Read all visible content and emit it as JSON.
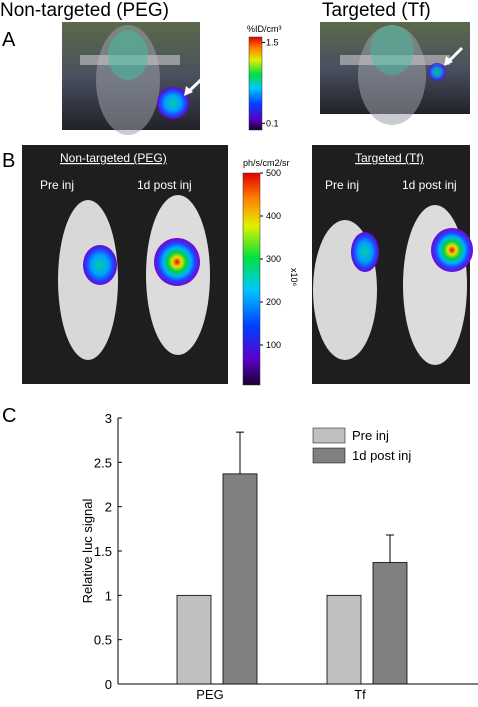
{
  "panels": {
    "a": {
      "label": "A",
      "left_title": "Non-targeted (PEG)",
      "right_title": "Targeted (Tf)",
      "colorbar": {
        "label": "%ID/cm³",
        "log": true,
        "lim": [
          0.08,
          1.8
        ],
        "ticks": [
          1.5,
          0.1
        ]
      }
    },
    "b": {
      "label": "B",
      "left_title": "Non-targeted (PEG)",
      "left_labels": [
        "Pre inj",
        "1d post inj"
      ],
      "right_title": "Targeted (Tf)",
      "right_labels": [
        "Pre inj",
        "1d post inj"
      ],
      "colorbar": {
        "label": "ph/s/cm2/sr",
        "multiplier": "x10⁶",
        "lim": [
          7,
          500
        ],
        "ticks": [
          500,
          400,
          300,
          200,
          100
        ]
      }
    },
    "c": {
      "label": "C"
    }
  },
  "chart_data": {
    "type": "bar",
    "y_label": "Relative luc signal",
    "categories": [
      "PEG",
      "Tf"
    ],
    "series": [
      {
        "name": "Pre inj",
        "color": "#c0c0c0",
        "values": [
          1,
          1
        ]
      },
      {
        "name": "1d post inj",
        "color": "#808080",
        "values": [
          2.37,
          1.37
        ],
        "errors": [
          0.47,
          0.31
        ]
      }
    ],
    "ylim": [
      0,
      3
    ],
    "yticks": [
      0,
      0.5,
      1,
      1.5,
      2,
      2.5,
      3
    ],
    "legend": "upper right"
  }
}
